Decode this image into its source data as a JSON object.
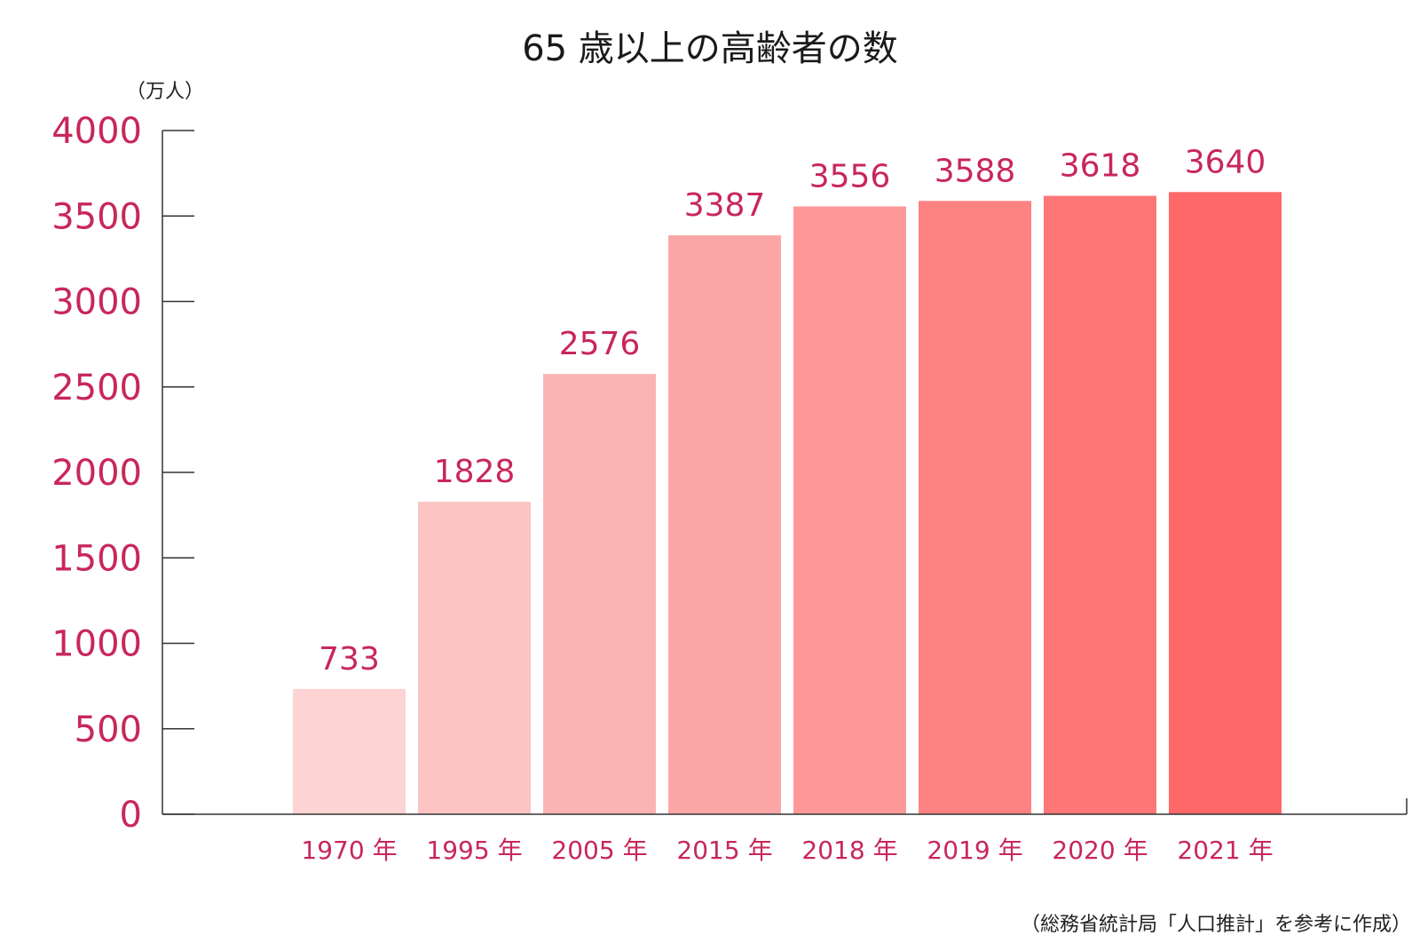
{
  "chart_data": {
    "type": "bar",
    "title": "65 歳以上の高齢者の数",
    "unit_label": "（万人）",
    "categories": [
      "1970 年",
      "1995 年",
      "2005 年",
      "2015 年",
      "2018 年",
      "2019 年",
      "2020 年",
      "2021 年"
    ],
    "values": [
      733,
      1828,
      2576,
      3387,
      3556,
      3588,
      3618,
      3640
    ],
    "value_labels": [
      "733",
      "1828",
      "2576",
      "3387",
      "3556",
      "3588",
      "3618",
      "3640"
    ],
    "ylim": [
      0,
      4000
    ],
    "yticks": [
      0,
      500,
      1000,
      1500,
      2000,
      2500,
      3000,
      3500,
      4000
    ],
    "ytick_labels": [
      "0",
      "500",
      "1000",
      "1500",
      "2000",
      "2500",
      "3000",
      "3500",
      "4000"
    ],
    "bar_colors": [
      "#fed3d3",
      "#fdc4c4",
      "#fbb4b4",
      "#fba6a6",
      "#fd9898",
      "#fe8282",
      "#fe7676",
      "#fe6868"
    ],
    "label_color": "#c8275a",
    "axis_color": "#333333",
    "grid": false,
    "legend": "none",
    "source_note": "（総務省統計局「人口推計」を参考に作成）"
  }
}
